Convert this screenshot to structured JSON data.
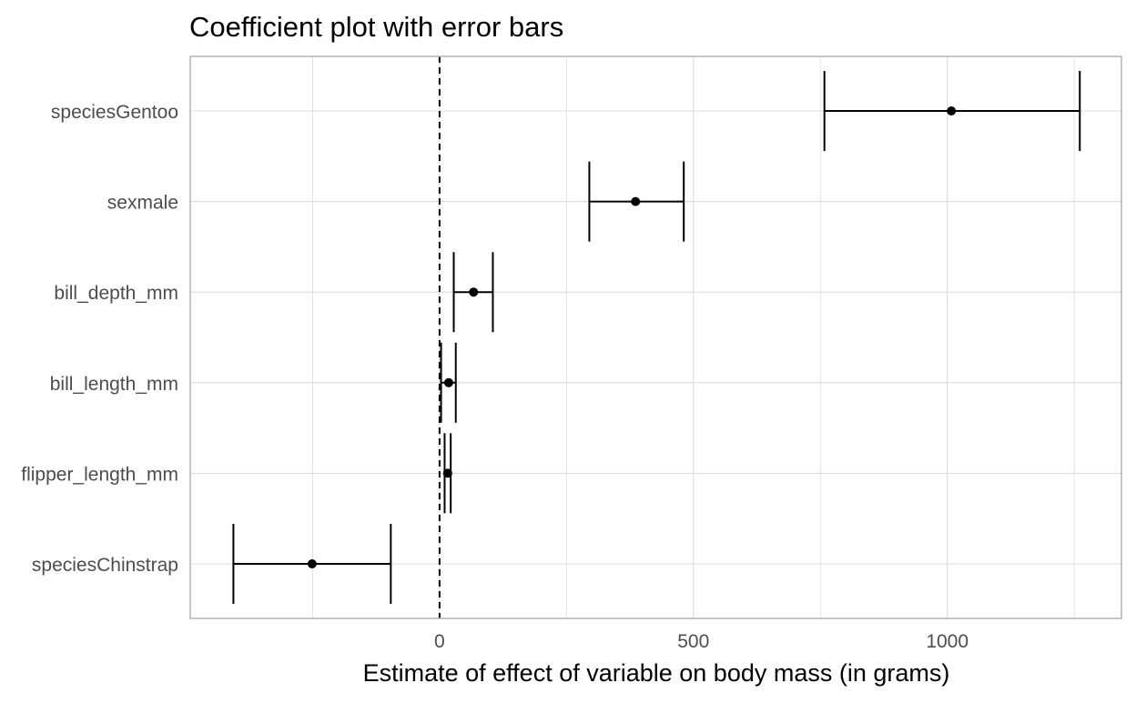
{
  "chart_data": {
    "type": "scatter",
    "title": "Coefficient plot with error bars",
    "xlabel": "Estimate of effect of variable on body mass (in grams)",
    "ylabel": "",
    "xlim": [
      -491,
      1343
    ],
    "x_ticks": [
      0,
      500,
      1000
    ],
    "x_tick_labels": [
      "0",
      "500",
      "1000"
    ],
    "reference_line": {
      "x": 0,
      "style": "dashed"
    },
    "grid": true,
    "legend": "none",
    "terms": [
      {
        "term": "speciesGentoo",
        "estimate": 1008,
        "low": 758,
        "high": 1261
      },
      {
        "term": "sexmale",
        "estimate": 386,
        "low": 295,
        "high": 481
      },
      {
        "term": "bill_depth_mm",
        "estimate": 67,
        "low": 28,
        "high": 105
      },
      {
        "term": "bill_length_mm",
        "estimate": 18,
        "low": 3,
        "high": 32
      },
      {
        "term": "flipper_length_mm",
        "estimate": 16,
        "low": 10,
        "high": 22
      },
      {
        "term": "speciesChinstrap",
        "estimate": -251,
        "low": -406,
        "high": -96
      }
    ],
    "colors": {
      "points": "#000000",
      "grid": "#dcdcdc",
      "panel_border": "#b3b3b3",
      "axis_text": "#4d4d4d",
      "title": "#000000"
    }
  }
}
